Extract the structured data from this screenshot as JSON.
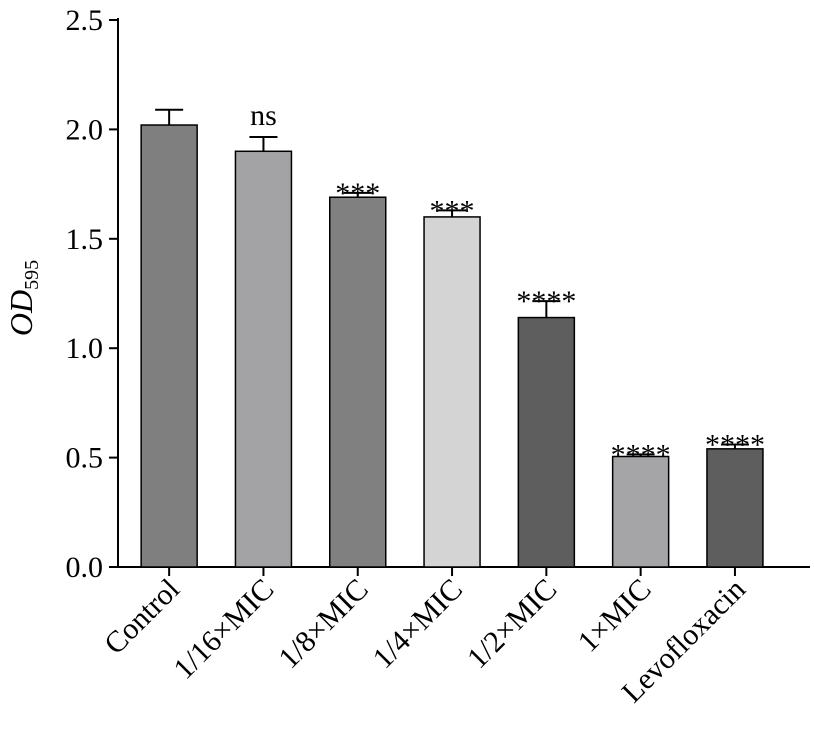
{
  "chart_data": {
    "type": "bar",
    "ylabel": {
      "main": "OD",
      "subscript": "595"
    },
    "ylim": [
      0,
      2.5
    ],
    "yticks": [
      "0.0",
      "0.5",
      "1.0",
      "1.5",
      "2.0",
      "2.5"
    ],
    "categories": [
      "Control",
      "1/16×MIC",
      "1/8×MIC",
      "1/4×MIC",
      "1/2×MIC",
      "1×MIC",
      "Levofloxacin"
    ],
    "values": [
      2.02,
      1.9,
      1.69,
      1.6,
      1.14,
      0.505,
      0.54
    ],
    "errors": [
      0.07,
      0.065,
      0.02,
      0.03,
      0.075,
      0.01,
      0.02
    ],
    "significance": [
      "",
      "ns",
      "***",
      "***",
      "****",
      "****",
      "****"
    ],
    "colors": [
      "#7f7f7f",
      "#a3a3a6",
      "#808080",
      "#d4d4d4",
      "#5e5e5e",
      "#a5a5a8",
      "#5e5e5e"
    ],
    "grid": false,
    "legend": "none"
  }
}
